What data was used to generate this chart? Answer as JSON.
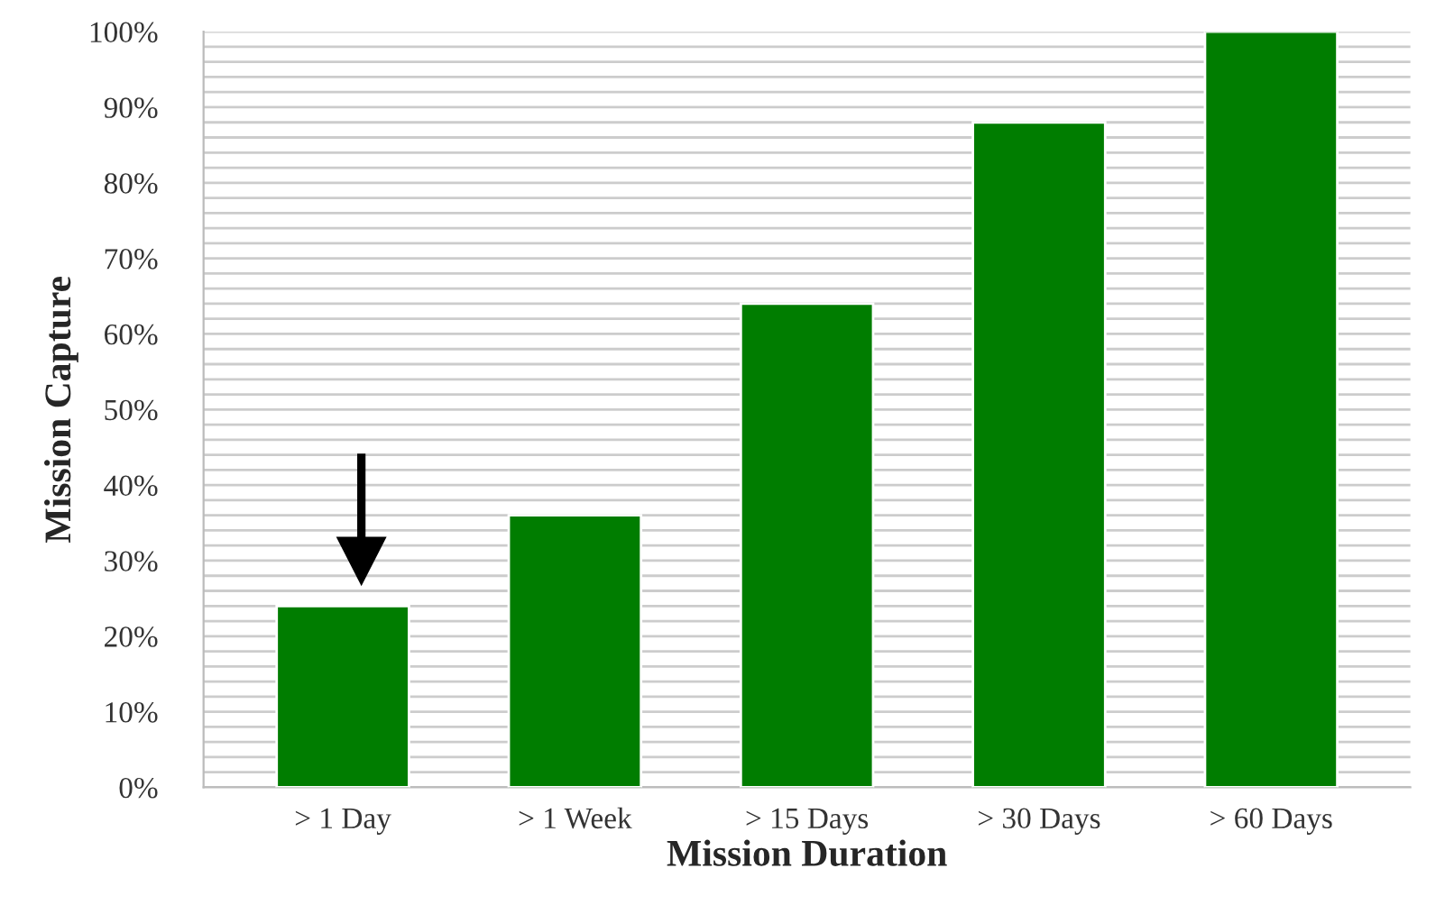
{
  "chart_data": {
    "type": "bar",
    "xlabel": "Mission Duration",
    "ylabel": "Mission Capture",
    "categories": [
      "> 1 Day",
      "> 1 Week",
      "> 15 Days",
      "> 30 Days",
      "> 60 Days"
    ],
    "values": [
      24,
      36,
      64,
      88,
      100
    ],
    "color": "#007d00",
    "ylim": [
      0,
      100
    ],
    "yticks": [
      {
        "value": 0,
        "label": "0%"
      },
      {
        "value": 2,
        "label": null
      },
      {
        "value": 4,
        "label": null
      },
      {
        "value": 6,
        "label": null
      },
      {
        "value": 8,
        "label": null
      },
      {
        "value": 10,
        "label": "10%"
      },
      {
        "value": 12,
        "label": null
      },
      {
        "value": 14,
        "label": null
      },
      {
        "value": 16,
        "label": null
      },
      {
        "value": 18,
        "label": null
      },
      {
        "value": 20,
        "label": "20%"
      },
      {
        "value": 22,
        "label": null
      },
      {
        "value": 24,
        "label": null
      },
      {
        "value": 26,
        "label": null
      },
      {
        "value": 28,
        "label": null
      },
      {
        "value": 30,
        "label": "30%"
      },
      {
        "value": 32,
        "label": null
      },
      {
        "value": 34,
        "label": null
      },
      {
        "value": 36,
        "label": null
      },
      {
        "value": 38,
        "label": null
      },
      {
        "value": 40,
        "label": "40%"
      },
      {
        "value": 42,
        "label": null
      },
      {
        "value": 44,
        "label": null
      },
      {
        "value": 46,
        "label": null
      },
      {
        "value": 48,
        "label": null
      },
      {
        "value": 50,
        "label": "50%"
      },
      {
        "value": 52,
        "label": null
      },
      {
        "value": 54,
        "label": null
      },
      {
        "value": 56,
        "label": null
      },
      {
        "value": 58,
        "label": null
      },
      {
        "value": 60,
        "label": "60%"
      },
      {
        "value": 62,
        "label": null
      },
      {
        "value": 64,
        "label": null
      },
      {
        "value": 66,
        "label": null
      },
      {
        "value": 68,
        "label": null
      },
      {
        "value": 70,
        "label": "70%"
      },
      {
        "value": 72,
        "label": null
      },
      {
        "value": 74,
        "label": null
      },
      {
        "value": 76,
        "label": null
      },
      {
        "value": 78,
        "label": null
      },
      {
        "value": 80,
        "label": "80%"
      },
      {
        "value": 82,
        "label": null
      },
      {
        "value": 84,
        "label": null
      },
      {
        "value": 86,
        "label": null
      },
      {
        "value": 88,
        "label": null
      },
      {
        "value": 90,
        "label": "90%"
      },
      {
        "value": 92,
        "label": null
      },
      {
        "value": 94,
        "label": null
      },
      {
        "value": 96,
        "label": null
      },
      {
        "value": 98,
        "label": null
      },
      {
        "value": 100,
        "label": "100%"
      }
    ],
    "grid": "y"
  }
}
